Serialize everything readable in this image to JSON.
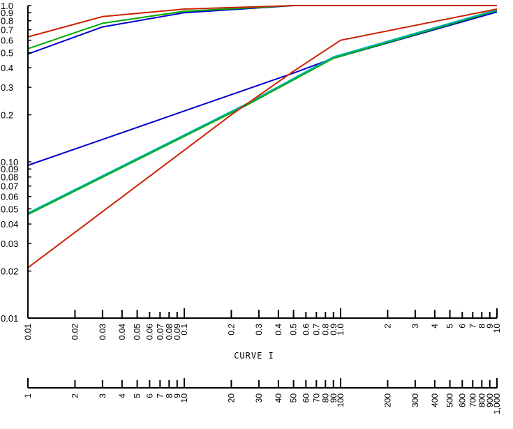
{
  "chart_data": {
    "type": "line",
    "title": "",
    "xlabel": "CURVE I",
    "ylabel": "",
    "x_scale": "log",
    "y_scale": "log",
    "xlim": [
      0.01,
      10
    ],
    "ylim": [
      0.01,
      1.0
    ],
    "grid": false,
    "legend": "none",
    "y_tick_labels": [
      "0.01",
      "0.02",
      "0.03",
      "0.04",
      "0.05",
      "0.06",
      "0.07",
      "0.08",
      "0.09",
      "0.10",
      "0.2",
      "0.3",
      "0.4",
      "0.5",
      "0.6",
      "0.7",
      "0.8",
      "0.9",
      "1.0"
    ],
    "x_tick_labels": [
      "0.01",
      "0.02",
      "0.03",
      "0.04",
      "0.05",
      "0.06",
      "0.07",
      "0.08",
      "0.09",
      "0.1",
      "0.2",
      "0.3",
      "0.4",
      "0.5",
      "0.6",
      "0.7",
      "0.8",
      "0.9",
      "1.0",
      "2",
      "3",
      "4",
      "5",
      "6",
      "7",
      "8",
      "9",
      "10"
    ],
    "secondary_x_tick_labels": [
      "1",
      "2",
      "3",
      "4",
      "5",
      "6",
      "7",
      "8",
      "9",
      "10",
      "20",
      "30",
      "40",
      "50",
      "60",
      "70",
      "80",
      "90",
      "100",
      "200",
      "300",
      "400",
      "500",
      "600",
      "700",
      "800",
      "900",
      "1,000"
    ],
    "series": [
      {
        "color": "#0000cc",
        "x": [
          0.01,
          0.5,
          0.9,
          10
        ],
        "y": [
          0.095,
          0.37,
          0.46,
          0.91
        ]
      },
      {
        "color": "#00aa00",
        "x": [
          0.01,
          0.25,
          0.9,
          10
        ],
        "y": [
          0.046,
          0.23,
          0.46,
          0.93
        ]
      },
      {
        "color": "#00b0b0",
        "x": [
          0.01,
          0.25,
          0.9,
          10
        ],
        "y": [
          0.047,
          0.235,
          0.47,
          0.94
        ]
      },
      {
        "color": "#cc2200",
        "x": [
          0.01,
          0.2,
          0.5,
          1.0,
          10
        ],
        "y": [
          0.021,
          0.2,
          0.38,
          0.6,
          0.95
        ]
      },
      {
        "color": "#0000cc",
        "x": [
          0.01,
          0.03,
          0.1,
          0.5,
          10
        ],
        "y": [
          0.49,
          0.73,
          0.9,
          1.0,
          1.0
        ]
      },
      {
        "color": "#00aa00",
        "x": [
          0.01,
          0.03,
          0.1,
          0.5,
          10
        ],
        "y": [
          0.53,
          0.77,
          0.92,
          1.0,
          1.0
        ]
      },
      {
        "color": "#cc2200",
        "x": [
          0.01,
          0.03,
          0.1,
          0.5,
          10
        ],
        "y": [
          0.63,
          0.85,
          0.95,
          1.0,
          1.0
        ]
      }
    ]
  }
}
